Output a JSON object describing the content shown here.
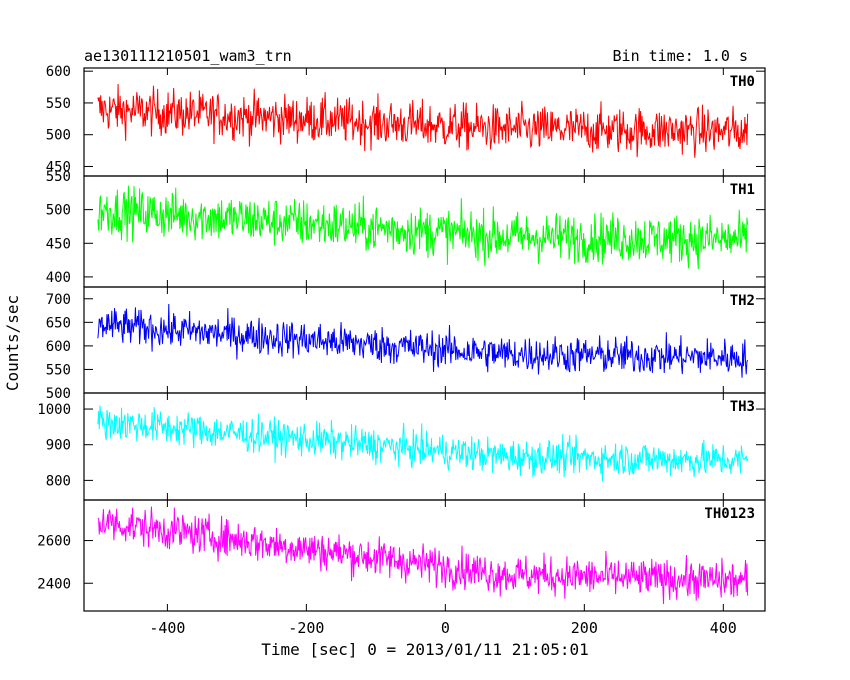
{
  "chart_data": {
    "type": "line",
    "title": "ae130111210501_wam3_trn",
    "subtitle": "Bin time: 1.0 s",
    "xlabel": "Time [sec] 0 = 2013/01/11 21:05:01",
    "ylabel": "Counts/sec",
    "xlim": [
      -520,
      460
    ],
    "x_ticks": [
      "-400",
      "-200",
      "0",
      "200",
      "400"
    ],
    "x_range": [
      -500,
      435
    ],
    "grid": false,
    "panels": [
      {
        "name": "TH0",
        "color": "#ff0000",
        "ylim": [
          435,
          605
        ],
        "y_ticks": [
          "450",
          "500",
          "550",
          "600"
        ],
        "start": 540,
        "end": 505,
        "noise": 26
      },
      {
        "name": "TH1",
        "color": "#00ff00",
        "ylim": [
          385,
          550
        ],
        "y_ticks": [
          "400",
          "450",
          "500",
          "550"
        ],
        "start": 500,
        "end": 455,
        "noise": 26
      },
      {
        "name": "TH2",
        "color": "#0000ff",
        "ylim": [
          500,
          725
        ],
        "y_ticks": [
          "500",
          "550",
          "600",
          "650",
          "700"
        ],
        "start": 645,
        "end": 575,
        "noise": 28
      },
      {
        "name": "TH3",
        "color": "#00ffff",
        "ylim": [
          745,
          1045
        ],
        "y_ticks": [
          "800",
          "900",
          "1000"
        ],
        "start": 965,
        "end": 855,
        "noise": 35
      },
      {
        "name": "TH0123",
        "color": "#ff00ff",
        "ylim": [
          2270,
          2790
        ],
        "y_ticks": [
          "2400",
          "2600"
        ],
        "start": 2690,
        "end": 2410,
        "noise": 65
      }
    ]
  }
}
